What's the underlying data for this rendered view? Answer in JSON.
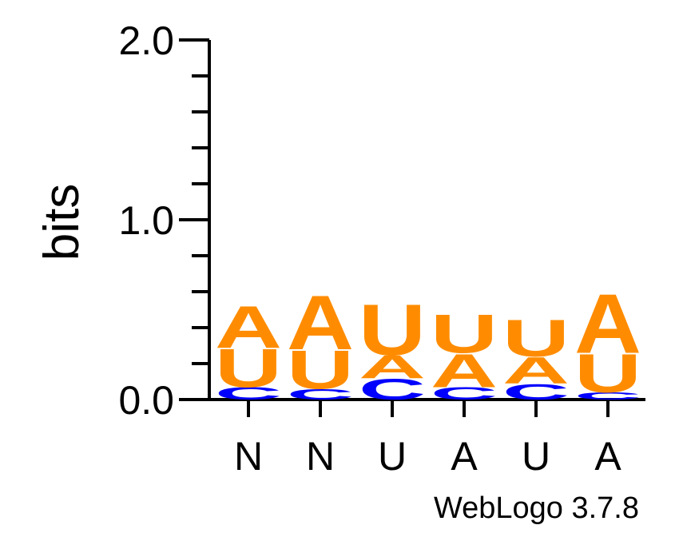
{
  "chart_data": {
    "type": "sequence-logo",
    "ylabel": "bits",
    "ylim": [
      0,
      2
    ],
    "yticks": [
      "0.0",
      "1.0",
      "2.0"
    ],
    "positions": [
      "N",
      "N",
      "U",
      "A",
      "U",
      "A"
    ],
    "colors": {
      "A": "#ff8c00",
      "U": "#ff8c00",
      "C": "#0000ff"
    },
    "stacks": [
      [
        {
          "letter": "C",
          "bits": 0.07
        },
        {
          "letter": "U",
          "bits": 0.22
        },
        {
          "letter": "A",
          "bits": 0.24
        }
      ],
      [
        {
          "letter": "C",
          "bits": 0.06
        },
        {
          "letter": "U",
          "bits": 0.22
        },
        {
          "letter": "A",
          "bits": 0.31
        }
      ],
      [
        {
          "letter": "C",
          "bits": 0.12
        },
        {
          "letter": "A",
          "bits": 0.13
        },
        {
          "letter": "U",
          "bits": 0.29
        }
      ],
      [
        {
          "letter": "C",
          "bits": 0.07
        },
        {
          "letter": "A",
          "bits": 0.19
        },
        {
          "letter": "U",
          "bits": 0.22
        }
      ],
      [
        {
          "letter": "C",
          "bits": 0.09
        },
        {
          "letter": "A",
          "bits": 0.15
        },
        {
          "letter": "U",
          "bits": 0.21
        }
      ],
      [
        {
          "letter": "C",
          "bits": 0.04
        },
        {
          "letter": "U",
          "bits": 0.22
        },
        {
          "letter": "A",
          "bits": 0.34
        }
      ]
    ]
  },
  "credit": "WebLogo 3.7.8"
}
